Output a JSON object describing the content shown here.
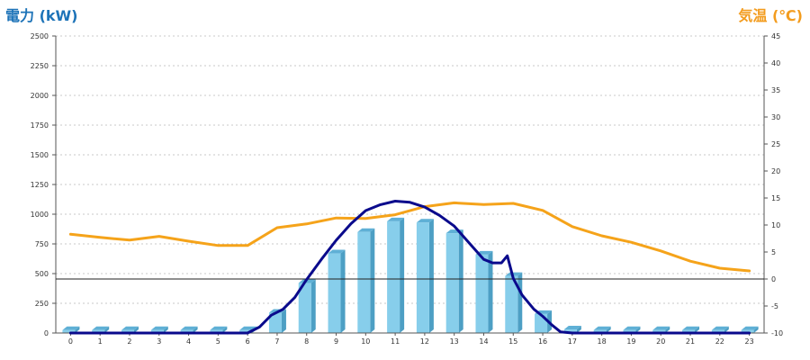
{
  "chart_data": {
    "type": "bar+line",
    "left_axis_title": "電力 (kW)",
    "right_axis_title": "気温 (℃)",
    "x": [
      "0",
      "1",
      "2",
      "3",
      "4",
      "5",
      "6",
      "7",
      "8",
      "9",
      "10",
      "11",
      "12",
      "13",
      "14",
      "15",
      "16",
      "17",
      "18",
      "19",
      "20",
      "21",
      "22",
      "23"
    ],
    "y_left": {
      "min": 0,
      "max": 2500,
      "ticks": [
        0,
        250,
        500,
        750,
        1000,
        1250,
        1500,
        1750,
        2000,
        2250,
        2500
      ]
    },
    "y_right": {
      "min": -10,
      "max": 45,
      "ticks": [
        -10,
        -5,
        0,
        5,
        10,
        15,
        20,
        25,
        30,
        35,
        40,
        45
      ]
    },
    "grid": true,
    "series": [
      {
        "kind": "bar",
        "axis": "left",
        "color": "#87ceeb",
        "values": [
          25,
          25,
          25,
          25,
          25,
          25,
          25,
          170,
          420,
          670,
          850,
          940,
          930,
          840,
          660,
          480,
          160,
          30,
          25,
          25,
          25,
          25,
          25,
          25
        ]
      },
      {
        "kind": "line",
        "axis": "right",
        "color": "#f5a31a",
        "values": [
          8.3,
          7.7,
          7.2,
          7.9,
          7.0,
          6.2,
          6.2,
          9.5,
          10.2,
          11.3,
          11.2,
          11.9,
          13.4,
          14.1,
          13.8,
          14.0,
          12.7,
          9.7,
          8.0,
          6.8,
          5.2,
          3.3,
          2.0,
          1.5
        ]
      },
      {
        "kind": "line",
        "axis": "left",
        "color": "#0a0a8c",
        "x": [
          0,
          1,
          2,
          3,
          4,
          5,
          6,
          6.4,
          6.8,
          7.2,
          7.6,
          8,
          8.5,
          9,
          9.5,
          10,
          10.5,
          11,
          11.5,
          12,
          12.5,
          13,
          13.5,
          14,
          14.3,
          14.6,
          14.8,
          15,
          15.3,
          15.7,
          16,
          16.3,
          16.6,
          17,
          17.5,
          18,
          19,
          20,
          21,
          22,
          23
        ],
        "values": [
          0,
          0,
          0,
          0,
          0,
          0,
          0,
          50,
          150,
          200,
          300,
          450,
          620,
          780,
          920,
          1030,
          1080,
          1110,
          1100,
          1060,
          990,
          900,
          760,
          620,
          590,
          590,
          650,
          460,
          320,
          200,
          140,
          70,
          10,
          0,
          0,
          0,
          0,
          0,
          0,
          0,
          0
        ]
      }
    ],
    "reference_line": {
      "axis": "right",
      "value": 0
    }
  }
}
